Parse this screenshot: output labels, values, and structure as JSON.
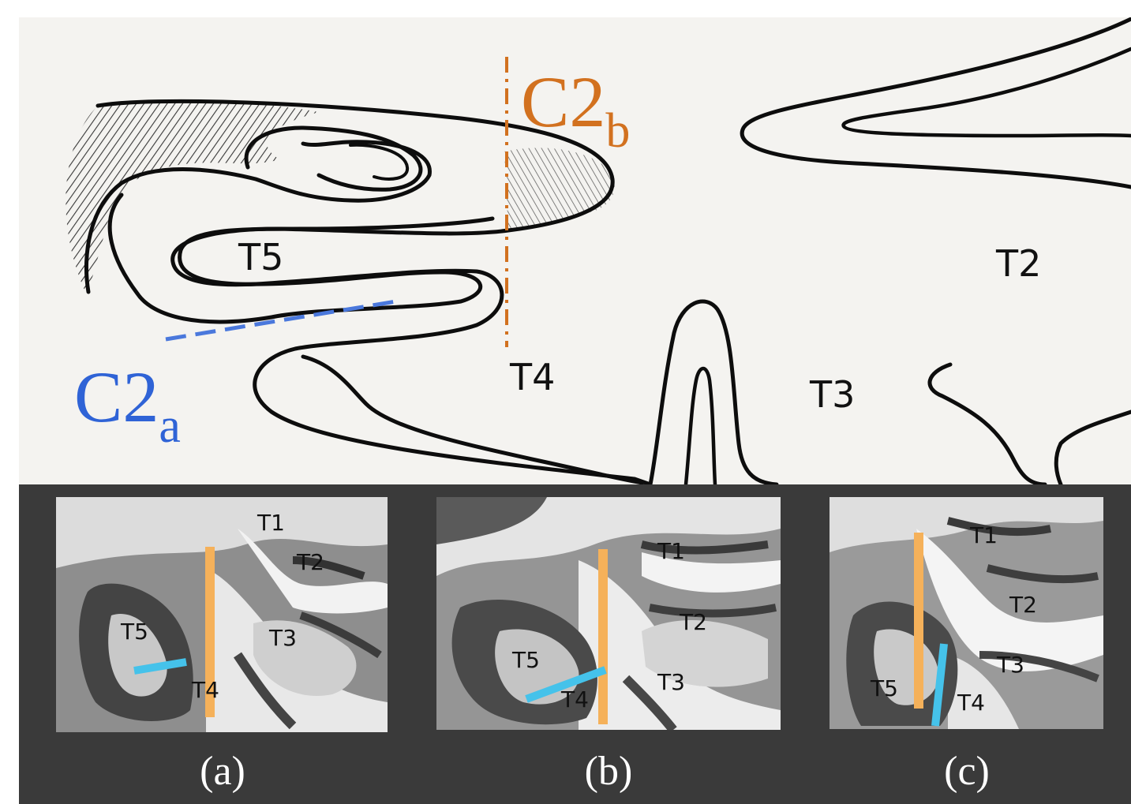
{
  "sketch": {
    "labels": {
      "t5": "T5",
      "t4": "T4",
      "t3": "T3",
      "t2": "T2"
    },
    "c2b": {
      "main": "C2",
      "sub": "b",
      "color": "#d2711f"
    },
    "c2a": {
      "main": "C2",
      "sub": "a",
      "color": "#2f63d6"
    }
  },
  "panels": [
    {
      "caption": "(a)",
      "labels": [
        "T1",
        "T2",
        "T5",
        "T3",
        "T4"
      ]
    },
    {
      "caption": "(b)",
      "labels": [
        "T1",
        "T2",
        "T5",
        "T3",
        "T4"
      ]
    },
    {
      "caption": "(c)",
      "labels": [
        "T1",
        "T2",
        "T3",
        "T5",
        "T4"
      ]
    }
  ],
  "colors": {
    "orange_line": "#f5b15a",
    "blue_line": "#45c2ea",
    "dark_background": "#3a3a3a"
  }
}
